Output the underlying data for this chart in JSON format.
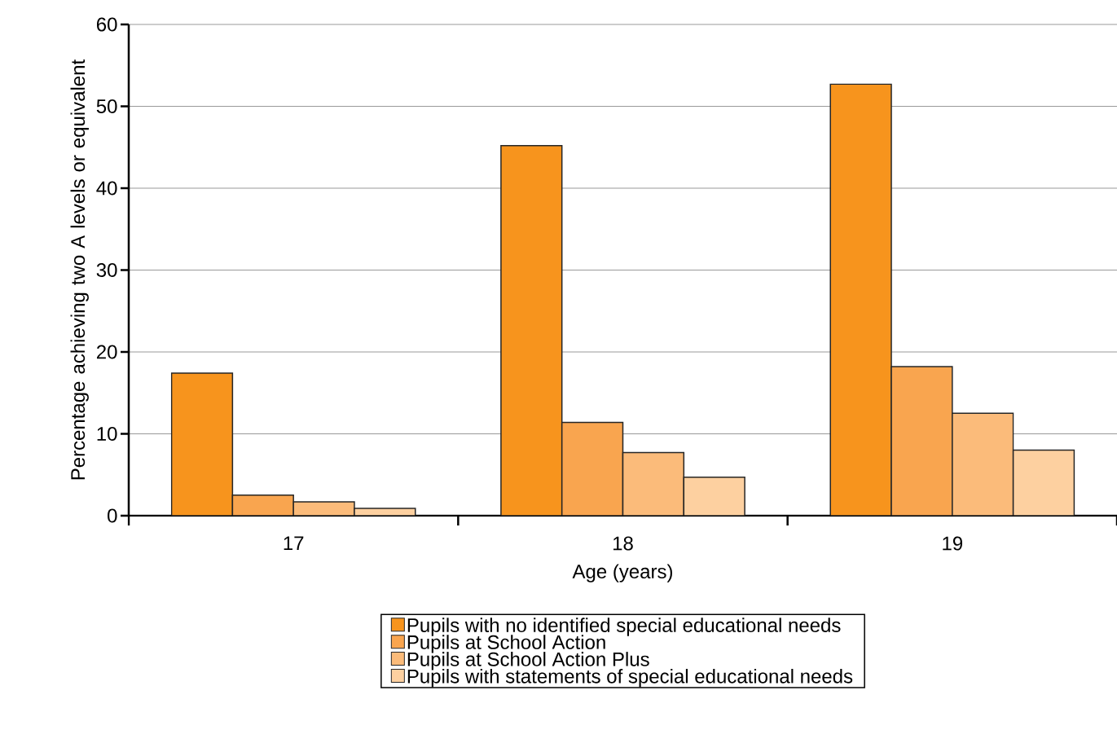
{
  "chart_data": {
    "type": "bar",
    "xlabel": "Age (years)",
    "ylabel": "Percentage achieving two A levels or equivalent",
    "categories": [
      "17",
      "18",
      "19"
    ],
    "series": [
      {
        "name": "Pupils with no identified special educational needs",
        "color": "#f7941d",
        "values": [
          17.4,
          45.2,
          52.7
        ]
      },
      {
        "name": "Pupils at School Action",
        "color": "#f9a54f",
        "values": [
          2.5,
          11.4,
          18.2
        ]
      },
      {
        "name": "Pupils at School Action Plus",
        "color": "#fbbb7a",
        "values": [
          1.7,
          7.7,
          12.5
        ]
      },
      {
        "name": "Pupils with statements of special educational needs",
        "color": "#fdd0a0",
        "values": [
          0.9,
          4.7,
          8.0
        ]
      }
    ],
    "ylim": [
      0,
      60
    ],
    "yticks": [
      0,
      10,
      20,
      30,
      40,
      50,
      60
    ],
    "grid": "y",
    "legend": "bottom"
  }
}
